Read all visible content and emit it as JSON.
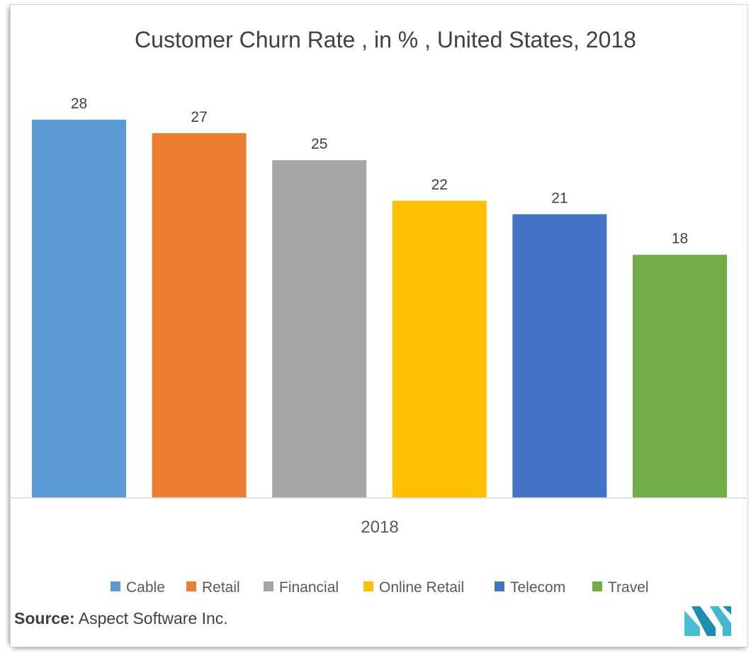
{
  "chart_data": {
    "type": "bar",
    "title": "Customer Churn Rate , in % , United States, 2018",
    "categories": [
      "2018"
    ],
    "series": [
      {
        "name": "Cable",
        "values": [
          28
        ],
        "color": "#5B9BD5"
      },
      {
        "name": "Retail",
        "values": [
          27
        ],
        "color": "#ED7D31"
      },
      {
        "name": "Financial",
        "values": [
          25
        ],
        "color": "#A5A5A5"
      },
      {
        "name": "Online Retail",
        "values": [
          22
        ],
        "color": "#FFC000"
      },
      {
        "name": "Telecom",
        "values": [
          21
        ],
        "color": "#4472C4"
      },
      {
        "name": "Travel",
        "values": [
          18
        ],
        "color": "#70AD47"
      }
    ],
    "ylim": [
      0,
      28
    ],
    "grid": false,
    "legend": "bottom"
  },
  "source": {
    "label": "Source:",
    "text": " Aspect Software Inc."
  },
  "logo": {
    "icon": "mordor-logo-icon",
    "color": "#2CB1C9"
  }
}
